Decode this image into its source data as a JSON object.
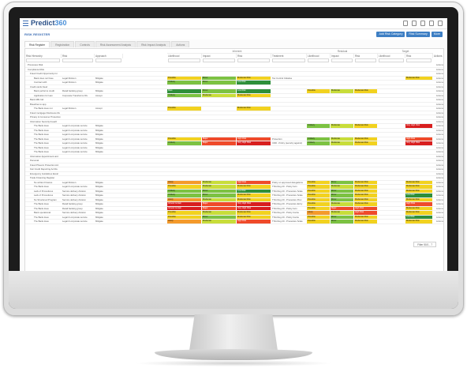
{
  "app": {
    "logo_main": "Predict",
    "logo_accent": "360",
    "page_title": "RISK REGISTER"
  },
  "toolbar": {
    "buttons": [
      "Add Risk Category",
      "Risk Summary",
      "More"
    ]
  },
  "tabs": [
    "Risk Register",
    "Registration",
    "Controls",
    "Risk Assessment Analysis",
    "Risk Impact Analysis",
    "Actions"
  ],
  "header": {
    "group_inherent": "Inherent",
    "group_residual": "Residual",
    "group_target": "Target",
    "columns": [
      "Risk Hierarchy",
      "Risk",
      "Approach",
      "Likelihood",
      "Impact",
      "Risk",
      "Treatment",
      "Likelihood",
      "Impact",
      "Risk",
      "Likelihood",
      "Risk",
      "Actions"
    ]
  },
  "rows": [
    {
      "tree": "Processes Risk",
      "risk": "",
      "approach": "",
      "i1": "",
      "i2": "",
      "i3": "",
      "treat": "",
      "r1": "",
      "r2": "",
      "r3": "",
      "t1": "",
      "t3": "",
      "act": "Actions"
    },
    {
      "tree": "Compliance Risk",
      "risk": "",
      "approach": "",
      "i1": "",
      "i2": "",
      "i3": "",
      "treat": "",
      "r1": "",
      "r2": "",
      "r3": "",
      "t1": "",
      "t3": "",
      "act": "Actions"
    },
    {
      "tree": "Fraud Credit Opportunity for",
      "risk": "",
      "approach": "",
      "i1": "",
      "i2": "",
      "i3": "",
      "treat": "",
      "r1": "",
      "r2": "",
      "r3": "",
      "t1": "",
      "t3": "",
      "act": "Actions"
    },
    {
      "tree": "Bank does not have",
      "risk": "Legal Division",
      "approach": "Mitigate",
      "i1": "Possible",
      "i2": "Minor",
      "i3": "Moderate Risk",
      "treat": "Tax Control Initiative",
      "r1": "",
      "r2": "",
      "r3": "",
      "t1": "",
      "t3": "Moderate Risk",
      "act": "Actions"
    },
    {
      "tree": "Contract with",
      "risk": "Legal Division",
      "approach": "Mitigate",
      "i1": "Unlikely",
      "i2": "Minor",
      "i3": "Low Risk",
      "treat": "",
      "r1": "",
      "r2": "",
      "r3": "",
      "t1": "",
      "t3": "",
      "act": "Actions"
    },
    {
      "tree": "Credit cards fraud",
      "risk": "",
      "approach": "",
      "i1": "",
      "i2": "",
      "i3": "",
      "treat": "",
      "r1": "",
      "r2": "",
      "r3": "",
      "t1": "",
      "t3": "",
      "act": "Actions"
    },
    {
      "tree": "Bank performs credit",
      "risk": "Retail banking group",
      "approach": "Mitigate",
      "i1": "Rare",
      "i2": "Minor",
      "i3": "Low Risk",
      "treat": "",
      "r1": "Possible",
      "r2": "Moderate",
      "r3": "Moderate Risk",
      "t1": "",
      "t3": "",
      "act": "Actions"
    },
    {
      "tree": "Application for loan",
      "risk": "Corporate Transforms Div",
      "approach": "Accept",
      "i1": "Unlikely",
      "i2": "Moderate",
      "i3": "Moderate Risk",
      "treat": "",
      "r1": "",
      "r2": "",
      "r3": "",
      "t1": "",
      "t3": "",
      "act": "Actions"
    },
    {
      "tree": "Bank AML fail",
      "risk": "",
      "approach": "",
      "i1": "",
      "i2": "",
      "i3": "",
      "treat": "",
      "r1": "",
      "r2": "",
      "r3": "",
      "t1": "",
      "t3": "",
      "act": "Actions"
    },
    {
      "tree": "Breaches to app",
      "risk": "",
      "approach": "",
      "i1": "",
      "i2": "",
      "i3": "",
      "treat": "",
      "r1": "",
      "r2": "",
      "r3": "",
      "t1": "",
      "t3": "",
      "act": "Actions"
    },
    {
      "tree": "The Bank does not",
      "risk": "Legal Division",
      "approach": "Accept",
      "i1": "Possible",
      "i2": "",
      "i3": "Moderate Risk",
      "treat": "",
      "r1": "",
      "r2": "",
      "r3": "",
      "t1": "",
      "t3": "",
      "act": "Actions"
    },
    {
      "tree": "Fraud mortgage Disclosure Ru",
      "risk": "",
      "approach": "",
      "i1": "",
      "i2": "",
      "i3": "",
      "treat": "",
      "r1": "",
      "r2": "",
      "r3": "",
      "t1": "",
      "t3": "",
      "act": "Actions"
    },
    {
      "tree": "Privacy & Consumer Protection",
      "risk": "",
      "approach": "",
      "i1": "",
      "i2": "",
      "i3": "",
      "treat": "",
      "r1": "",
      "r2": "",
      "r3": "",
      "t1": "",
      "t3": "",
      "act": "Actions"
    },
    {
      "tree": "Information Security breach",
      "risk": "",
      "approach": "",
      "i1": "",
      "i2": "",
      "i3": "",
      "treat": "",
      "r1": "",
      "r2": "",
      "r3": "",
      "t1": "",
      "t3": "",
      "act": "Actions"
    },
    {
      "tree": "The Bank does",
      "risk": "Legal & corporate service",
      "approach": "Mitigate",
      "i1": "",
      "i2": "",
      "i3": "",
      "treat": "",
      "r1": "Unlikely",
      "r2": "Moderate",
      "r3": "Moderate Risk",
      "t1": "",
      "t3": "Very High Risk",
      "act": "Actions"
    },
    {
      "tree": "The Bank does",
      "risk": "Legal & corporate service",
      "approach": "Mitigate",
      "i1": "",
      "i2": "",
      "i3": "",
      "treat": "",
      "r1": "",
      "r2": "",
      "r3": "",
      "t1": "",
      "t3": "",
      "act": "Actions"
    },
    {
      "tree": "The Bank does",
      "risk": "Legal & corporate service",
      "approach": "Mitigate",
      "i1": "",
      "i2": "",
      "i3": "",
      "treat": "",
      "r1": "",
      "r2": "",
      "r3": "",
      "t1": "",
      "t3": "",
      "act": "Actions"
    },
    {
      "tree": "The Bank does",
      "risk": "Legal & corporate service",
      "approach": "Mitigate",
      "i1": "Possible",
      "i2": "Major",
      "i3": "High Risk",
      "treat": "Protection",
      "r1": "Unlikely",
      "r2": "Moderate",
      "r3": "Moderate Risk",
      "t1": "",
      "t3": "High Risk",
      "act": "Actions"
    },
    {
      "tree": "The Bank does",
      "risk": "Legal & corporate service",
      "approach": "Mitigate",
      "i1": "Unlikely",
      "i2": "Major",
      "i3": "Very High Risk",
      "treat": "CDD - Policy (security against)",
      "r1": "Unlikely",
      "r2": "Moderate",
      "r3": "Moderate Risk",
      "t1": "",
      "t3": "Very High Risk",
      "act": "Actions"
    },
    {
      "tree": "The Bank does",
      "risk": "Legal & corporate service",
      "approach": "Mitigate",
      "i1": "",
      "i2": "",
      "i3": "",
      "treat": "",
      "r1": "",
      "r2": "",
      "r3": "",
      "t1": "",
      "t3": "",
      "act": "Actions"
    },
    {
      "tree": "The Bank does",
      "risk": "Legal & corporate service",
      "approach": "Mitigate",
      "i1": "",
      "i2": "",
      "i3": "",
      "treat": "",
      "r1": "",
      "r2": "",
      "r3": "",
      "t1": "",
      "t3": "",
      "act": "Actions"
    },
    {
      "tree": "Information Appointment and",
      "risk": "",
      "approach": "",
      "i1": "",
      "i2": "",
      "i3": "",
      "treat": "",
      "r1": "",
      "r2": "",
      "r3": "",
      "t1": "",
      "t3": "",
      "act": "Actions"
    },
    {
      "tree": "Personal",
      "risk": "",
      "approach": "",
      "i1": "",
      "i2": "",
      "i3": "",
      "treat": "",
      "r1": "",
      "r2": "",
      "r3": "",
      "t1": "",
      "t3": "",
      "act": "Actions"
    },
    {
      "tree": "Fraud Phoenix Protection Act",
      "risk": "",
      "approach": "",
      "i1": "",
      "i2": "",
      "i3": "",
      "treat": "",
      "r1": "",
      "r2": "",
      "r3": "",
      "t1": "",
      "t3": "",
      "act": "Actions"
    },
    {
      "tree": "Fair Credit Reporting Act Re",
      "risk": "",
      "approach": "",
      "i1": "",
      "i2": "",
      "i3": "",
      "treat": "",
      "r1": "",
      "r2": "",
      "r3": "",
      "t1": "",
      "t3": "",
      "act": "Actions"
    },
    {
      "tree": "Emergency Guidelines Escal",
      "risk": "",
      "approach": "",
      "i1": "",
      "i2": "",
      "i3": "",
      "treat": "",
      "r1": "",
      "r2": "",
      "r3": "",
      "t1": "",
      "t3": "",
      "act": "Actions"
    },
    {
      "tree": "Trade Financing Register",
      "risk": "",
      "approach": "",
      "i1": "",
      "i2": "",
      "i3": "",
      "treat": "",
      "r1": "",
      "r2": "",
      "r3": "",
      "t1": "",
      "t3": "",
      "act": "Actions"
    },
    {
      "tree": "No written Finance",
      "risk": "Legal Division",
      "approach": "Mitigate",
      "i1": "Likely",
      "i2": "Moderate",
      "i3": "High Risk",
      "treat": "Policy on approved delegations",
      "r1": "Possible",
      "r2": "Minor",
      "r3": "Moderate Risk",
      "t1": "",
      "t3": "Moderate Risk",
      "act": "Actions"
    },
    {
      "tree": "The Bank does",
      "risk": "Legal & corporate service",
      "approach": "Mitigate",
      "i1": "Possible",
      "i2": "Moderate",
      "i3": "Moderate Risk",
      "treat": "TSG Reg 20 - Policy form",
      "r1": "Possible",
      "r2": "Moderate",
      "r3": "Moderate Risk",
      "t1": "",
      "t3": "Moderate Risk",
      "act": "Actions"
    },
    {
      "tree": "Lack of Procedures",
      "risk": "Service delivery division",
      "approach": "Mitigate",
      "i1": "Unlikely",
      "i2": "Minor",
      "i3": "Low Risk",
      "treat": "TSG Reg 20 - Procedure Scale",
      "r1": "Possible",
      "r2": "Minor",
      "r3": "Moderate Risk",
      "t1": "",
      "t3": "Moderate Risk",
      "act": "Actions"
    },
    {
      "tree": "Lack of Procedures",
      "risk": "Service delivery division",
      "approach": "Mitigate",
      "i1": "Unlikely",
      "i2": "Minor",
      "i3": "Moderate Risk",
      "treat": "TSG Reg 20 - Procedure Scale",
      "r1": "Possible",
      "r2": "Minor",
      "r3": "Moderate Risk",
      "t1": "",
      "t3": "Low Risk",
      "act": "Actions"
    },
    {
      "tree": "No Structured Program",
      "risk": "Service delivery division",
      "approach": "Mitigate",
      "i1": "Likely",
      "i2": "Moderate",
      "i3": "Moderate Risk",
      "treat": "TSG Reg 20 - Procedure Proc",
      "r1": "Possible",
      "r2": "Minor",
      "r3": "Moderate Risk",
      "t1": "",
      "t3": "Moderate Risk",
      "act": "Actions"
    },
    {
      "tree": "The Bank does",
      "risk": "Retail banking group",
      "approach": "Mitigate",
      "i1": "Almost Certain",
      "i2": "Major",
      "i3": "Very High Risk",
      "treat": "TSG Reg 20 - Procedure Entry",
      "r1": "Possible",
      "r2": "Moderate",
      "r3": "Moderate Risk",
      "t1": "",
      "t3": "High Risk",
      "act": "Actions"
    },
    {
      "tree": "The Bank does",
      "risk": "Retail banking group",
      "approach": "Mitigate",
      "i1": "Almost Certain",
      "i2": "Major",
      "i3": "Very High Risk",
      "treat": "TSG Reg 20 - Policy form",
      "r1": "Possible",
      "r2": "Major",
      "r3": "High Risk",
      "t1": "",
      "t3": "Moderate Risk",
      "act": "Actions"
    },
    {
      "tree": "Bank operational",
      "risk": "Service delivery division",
      "approach": "Mitigate",
      "i1": "Possible",
      "i2": "Moderate",
      "i3": "Moderate Risk",
      "treat": "TSG Reg 20 - Policy Carrie",
      "r1": "Likely",
      "r2": "Moderate",
      "r3": "High Risk",
      "t1": "",
      "t3": "Moderate Risk",
      "act": "Actions"
    },
    {
      "tree": "The Bank does",
      "risk": "Legal & corporate service",
      "approach": "Mitigate",
      "i1": "Possible",
      "i2": "Minor",
      "i3": "Moderate Risk",
      "treat": "TSG Reg 20 - Policy Carrie",
      "r1": "Possible",
      "r2": "Minor",
      "r3": "Moderate Risk",
      "t1": "",
      "t3": "Low Risk",
      "act": "Actions"
    },
    {
      "tree": "The Bank does",
      "risk": "Legal & corporate service",
      "approach": "Mitigate",
      "i1": "Likely",
      "i2": "Moderate",
      "i3": "High Risk",
      "treat": "TSG Reg 20 - Procedure Scale",
      "r1": "Possible",
      "r2": "Minor",
      "r3": "Moderate Risk",
      "t1": "",
      "t3": "Moderate Risk",
      "act": "Actions"
    }
  ],
  "pager": "Filter 50/1 - 7",
  "colors": {
    "very_high": "#d81e1e",
    "high": "#ef4a2a",
    "moderate": "#f2d21f",
    "yellow_green": "#c8dd3a",
    "green": "#7cc242",
    "dark_green": "#2e8f3a",
    "orange": "#f49a2b",
    "accent": "#3e7fc4"
  }
}
